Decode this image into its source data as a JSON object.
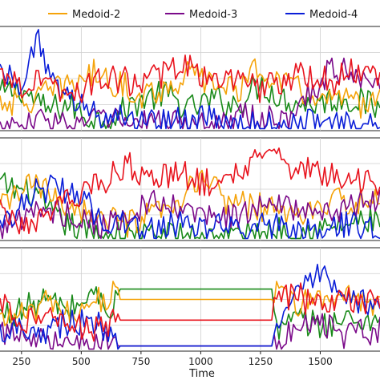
{
  "legend": [
    {
      "name": "Medoid-2",
      "color": "#f5a30a"
    },
    {
      "name": "Medoid-3",
      "color": "#7b0a8a"
    },
    {
      "name": "Medoid-4",
      "color": "#0a1ed8"
    }
  ],
  "chart_data": {
    "type": "line",
    "xlabel": "Time",
    "xlim": [
      160,
      1750
    ],
    "xticks": [
      250,
      500,
      750,
      1000,
      1250,
      1500
    ],
    "grid": true,
    "legend_position": "top",
    "series_colors": {
      "green": "#1a8a1a",
      "orange": "#f5a30a",
      "purple": "#7b0a8a",
      "blue": "#0a1ed8",
      "red": "#e8141e"
    },
    "panels": [
      {
        "series": [
          {
            "color": "green",
            "x": [
              160,
              250,
              350,
              450,
              550,
              650,
              750,
              850,
              950,
              1050,
              1150,
              1250,
              1350,
              1450,
              1550,
              1650,
              1750
            ],
            "y": [
              0.35,
              0.4,
              0.2,
              0.25,
              0.1,
              0.15,
              0.3,
              0.35,
              0.2,
              0.3,
              0.25,
              0.45,
              0.3,
              0.25,
              0.3,
              0.3,
              0.2
            ]
          },
          {
            "color": "orange",
            "x": [
              160,
              250,
              350,
              450,
              550,
              650,
              750,
              850,
              950,
              1050,
              1150,
              1250,
              1350,
              1450,
              1550,
              1650,
              1750
            ],
            "y": [
              0.3,
              0.25,
              0.35,
              0.45,
              0.55,
              0.45,
              0.35,
              0.4,
              0.55,
              0.45,
              0.4,
              0.6,
              0.45,
              0.35,
              0.3,
              0.25,
              0.3
            ]
          },
          {
            "color": "purple",
            "x": [
              160,
              250,
              350,
              450,
              550,
              650,
              750,
              850,
              950,
              1050,
              1150,
              1250,
              1350,
              1450,
              1550,
              1650,
              1750
            ],
            "y": [
              0.05,
              0.05,
              0.1,
              0.05,
              0.1,
              0.1,
              0.05,
              0.1,
              0.05,
              0.05,
              0.15,
              0.1,
              0.1,
              0.35,
              0.6,
              0.55,
              0.5
            ]
          },
          {
            "color": "blue",
            "x": [
              160,
              250,
              320,
              400,
              500,
              600,
              700,
              800,
              900,
              1000,
              1100,
              1200,
              1300,
              1400,
              1500,
              1600,
              1750
            ],
            "y": [
              0.6,
              0.45,
              0.9,
              0.35,
              0.25,
              0.15,
              0.1,
              0.1,
              0.1,
              0.1,
              0.1,
              0.05,
              0.05,
              0.05,
              0.1,
              0.05,
              0.05
            ]
          },
          {
            "color": "red",
            "x": [
              160,
              250,
              350,
              450,
              550,
              650,
              750,
              850,
              950,
              1050,
              1150,
              1250,
              1350,
              1450,
              1550,
              1650,
              1750
            ],
            "y": [
              0.55,
              0.45,
              0.5,
              0.35,
              0.45,
              0.5,
              0.45,
              0.55,
              0.6,
              0.5,
              0.45,
              0.4,
              0.5,
              0.55,
              0.45,
              0.6,
              0.5
            ]
          }
        ]
      },
      {
        "series": [
          {
            "color": "green",
            "x": [
              160,
              220,
              300,
              400,
              500,
              600,
              700,
              800,
              900,
              1000,
              1100,
              1200,
              1300,
              1400,
              1500,
              1600,
              1750
            ],
            "y": [
              0.55,
              0.5,
              0.45,
              0.2,
              0.1,
              0.05,
              0.05,
              0.05,
              0.05,
              0.05,
              0.05,
              0.05,
              0.1,
              0.1,
              0.1,
              0.15,
              0.2
            ]
          },
          {
            "color": "orange",
            "x": [
              160,
              220,
              300,
              400,
              500,
              600,
              700,
              800,
              900,
              1000,
              1100,
              1200,
              1300,
              1400,
              1500,
              1600,
              1750
            ],
            "y": [
              0.3,
              0.45,
              0.55,
              0.4,
              0.3,
              0.2,
              0.15,
              0.25,
              0.3,
              0.65,
              0.4,
              0.35,
              0.3,
              0.25,
              0.3,
              0.4,
              0.35
            ]
          },
          {
            "color": "purple",
            "x": [
              160,
              220,
              300,
              400,
              500,
              600,
              700,
              800,
              900,
              1000,
              1100,
              1200,
              1300,
              1400,
              1500,
              1600,
              1750
            ],
            "y": [
              0.1,
              0.2,
              0.25,
              0.3,
              0.2,
              0.15,
              0.25,
              0.35,
              0.3,
              0.25,
              0.2,
              0.3,
              0.35,
              0.3,
              0.25,
              0.3,
              0.4
            ]
          },
          {
            "color": "blue",
            "x": [
              160,
              220,
              300,
              400,
              500,
              600,
              700,
              800,
              900,
              1000,
              1100,
              1200,
              1300,
              1400,
              1500,
              1600,
              1750
            ],
            "y": [
              0.15,
              0.3,
              0.45,
              0.55,
              0.4,
              0.2,
              0.15,
              0.1,
              0.15,
              0.1,
              0.15,
              0.1,
              0.15,
              0.1,
              0.1,
              0.15,
              0.1
            ]
          },
          {
            "color": "red",
            "x": [
              160,
              220,
              300,
              400,
              500,
              600,
              700,
              800,
              900,
              1000,
              1100,
              1200,
              1300,
              1400,
              1500,
              1600,
              1750
            ],
            "y": [
              0.35,
              0.2,
              0.2,
              0.3,
              0.45,
              0.6,
              0.75,
              0.55,
              0.7,
              0.55,
              0.6,
              0.75,
              0.85,
              0.7,
              0.65,
              0.6,
              0.55
            ]
          }
        ]
      },
      {
        "series": [
          {
            "color": "green",
            "x": [
              160,
              250,
              350,
              450,
              550,
              640,
              650,
              1300,
              1310,
              1400,
              1500,
              1600,
              1750
            ],
            "y": [
              0.35,
              0.4,
              0.5,
              0.4,
              0.55,
              0.4,
              0.6,
              0.6,
              0.2,
              0.3,
              0.25,
              0.3,
              0.3
            ]
          },
          {
            "color": "orange",
            "x": [
              160,
              250,
              350,
              450,
              550,
              640,
              650,
              1300,
              1310,
              1400,
              1500,
              1600,
              1750
            ],
            "y": [
              0.3,
              0.35,
              0.45,
              0.35,
              0.5,
              0.55,
              0.5,
              0.5,
              0.55,
              0.45,
              0.5,
              0.55,
              0.45
            ]
          },
          {
            "color": "purple",
            "x": [
              160,
              250,
              350,
              450,
              550,
              640,
              650,
              1300,
              1310,
              1400,
              1500,
              1600,
              1750
            ],
            "y": [
              0.15,
              0.2,
              0.1,
              0.15,
              0.05,
              0.1,
              0.05,
              0.05,
              0.1,
              0.2,
              0.25,
              0.15,
              0.2
            ]
          },
          {
            "color": "blue",
            "x": [
              160,
              250,
              350,
              450,
              550,
              640,
              650,
              1300,
              1310,
              1400,
              1500,
              1600,
              1750
            ],
            "y": [
              0.2,
              0.25,
              0.2,
              0.3,
              0.25,
              0.2,
              0.05,
              0.05,
              0.3,
              0.5,
              0.75,
              0.45,
              0.5
            ]
          },
          {
            "color": "red",
            "x": [
              160,
              250,
              350,
              450,
              550,
              640,
              650,
              1300,
              1310,
              1400,
              1500,
              1600,
              1750
            ],
            "y": [
              0.45,
              0.3,
              0.35,
              0.25,
              0.2,
              0.3,
              0.3,
              0.3,
              0.5,
              0.55,
              0.4,
              0.5,
              0.45
            ]
          }
        ]
      }
    ]
  }
}
